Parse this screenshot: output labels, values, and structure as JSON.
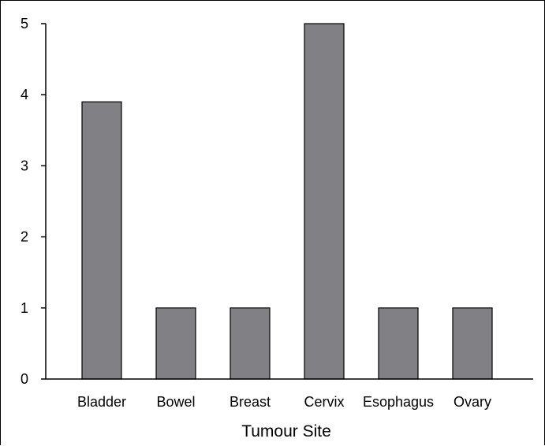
{
  "chart_data": {
    "type": "bar",
    "categories": [
      "Bladder",
      "Bowel",
      "Breast",
      "Cervix",
      "Esophagus",
      "Ovary"
    ],
    "values": [
      3.9,
      1,
      1,
      5,
      1,
      1
    ],
    "title": "",
    "xlabel": "Tumour Site",
    "ylabel": "",
    "ylim": [
      0,
      5
    ],
    "yticks": [
      "0",
      "1",
      "2",
      "3",
      "4",
      "5"
    ],
    "grid": false,
    "legend": "none",
    "bar_color": "#808085",
    "bar_edge_color": "#000000"
  }
}
